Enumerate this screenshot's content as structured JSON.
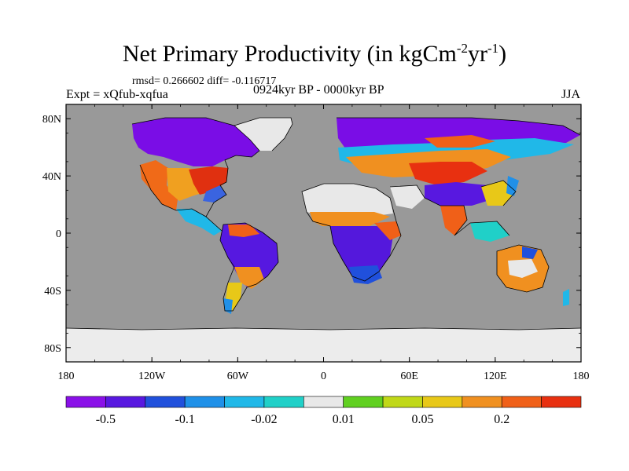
{
  "title": {
    "main": "Net Primary Productivity (in kgCm",
    "exp1": "-2",
    "mid": "yr",
    "exp2": "-1",
    "end": ")"
  },
  "stats": "rmsd= 0.266602 diff= -0.116717",
  "experiment": "Expt = xQfub-xqfua",
  "period": "0924kyr BP - 0000kyr BP",
  "season": "JJA",
  "map": {
    "ocean_color": "#999999",
    "ice_color": "#ececec",
    "lon_ticks": [
      "180",
      "120W",
      "60W",
      "0",
      "60E",
      "120E",
      "180"
    ],
    "lat_ticks": [
      "80N",
      "40N",
      "0",
      "40S",
      "80S"
    ]
  },
  "colorbar": {
    "colors": [
      "#8a10e8",
      "#5818e0",
      "#2050dc",
      "#1e90e8",
      "#20b8e8",
      "#20d0c8",
      "#e8e8e8",
      "#60d020",
      "#c0d818",
      "#e8c818",
      "#f09020",
      "#f06018",
      "#e83010"
    ],
    "labels": [
      "-0.5",
      "-0.1",
      "-0.02",
      "0.01",
      "0.05",
      "0.2"
    ]
  }
}
